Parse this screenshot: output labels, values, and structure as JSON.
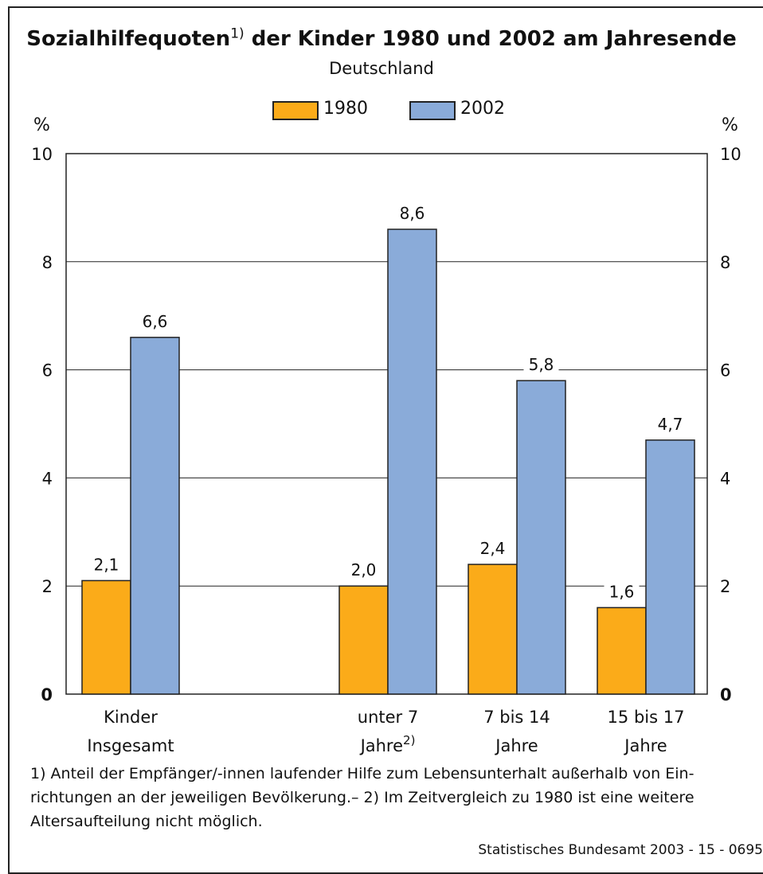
{
  "chart_data": {
    "type": "bar",
    "title": "Sozialhilfequoten",
    "title_footnote_marker": "1)",
    "title_rest": " der Kinder 1980 und 2002 am Jahresende",
    "subtitle": "Deutschland",
    "ylabel_left": "%",
    "ylabel_right": "%",
    "ylim": [
      0,
      10
    ],
    "yticks": [
      "0",
      "2",
      "4",
      "6",
      "8",
      "10"
    ],
    "grid": true,
    "legend_placement": "top-center",
    "categories": [
      {
        "line1": "Kinder",
        "line2": "Insgesamt",
        "line2_marker": ""
      },
      {
        "line1": "unter 7",
        "line2": "Jahre",
        "line2_marker": "2)"
      },
      {
        "line1": "7 bis 14",
        "line2": "Jahre",
        "line2_marker": ""
      },
      {
        "line1": "15 bis 17",
        "line2": "Jahre",
        "line2_marker": ""
      }
    ],
    "series": [
      {
        "name": "1980",
        "color": "#fbab19",
        "values": [
          2.1,
          2.0,
          2.4,
          1.6
        ],
        "labels": [
          "2,1",
          "2,0",
          "2,4",
          "1,6"
        ]
      },
      {
        "name": "2002",
        "color": "#8aabd9",
        "values": [
          6.6,
          8.6,
          5.8,
          4.7
        ],
        "labels": [
          "6,6",
          "8,6",
          "5,8",
          "4,7"
        ]
      }
    ]
  },
  "footnote": "1) Anteil der Empfänger/-innen laufender Hilfe zum Lebensunterhalt außerhalb von Ein-richtungen an der jeweiligen Bevölkerung.– 2) Im Zeitvergleich zu 1980 ist eine weitere Altersaufteilung nicht möglich.",
  "footnote_lines": [
    "1) Anteil der Empfänger/-innen laufender Hilfe zum Lebensunterhalt außerhalb von Ein-",
    "richtungen an der jeweiligen Bevölkerung.– 2) Im Zeitvergleich zu 1980 ist eine weitere",
    "Altersaufteilung nicht möglich."
  ],
  "source": "Statistisches Bundesamt 2003 - 15 - 0695"
}
